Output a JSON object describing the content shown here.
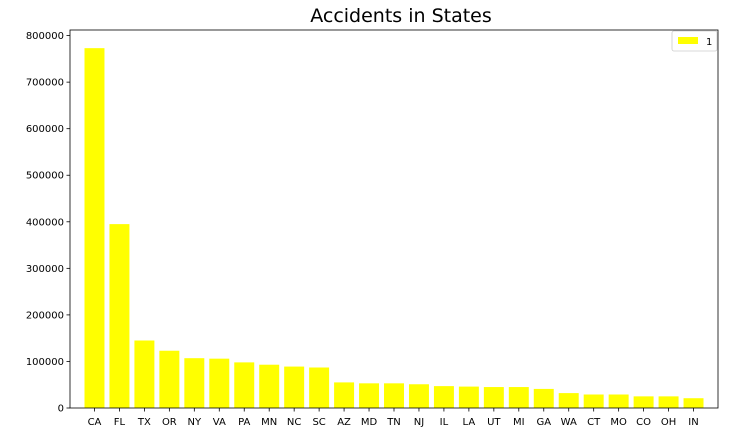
{
  "chart_data": {
    "type": "bar",
    "title": "Accidents in States",
    "xlabel": "",
    "ylabel": "",
    "categories": [
      "CA",
      "FL",
      "TX",
      "OR",
      "NY",
      "VA",
      "PA",
      "MN",
      "NC",
      "SC",
      "AZ",
      "MD",
      "TN",
      "NJ",
      "IL",
      "LA",
      "UT",
      "MI",
      "GA",
      "WA",
      "CT",
      "MO",
      "CO",
      "OH",
      "IN"
    ],
    "series": [
      {
        "name": "1",
        "color": "#ffff00",
        "values": [
          773000,
          395000,
          145000,
          123000,
          107000,
          106000,
          98000,
          93000,
          89000,
          87000,
          55000,
          53000,
          53000,
          51000,
          47000,
          46000,
          45000,
          45000,
          41000,
          32000,
          29000,
          29000,
          25000,
          25000,
          21000
        ]
      }
    ],
    "ylim": [
      0,
      812000
    ],
    "yticks": [
      0,
      100000,
      200000,
      300000,
      400000,
      500000,
      600000,
      700000,
      800000
    ],
    "grid": false,
    "legend_position": "top-right"
  }
}
